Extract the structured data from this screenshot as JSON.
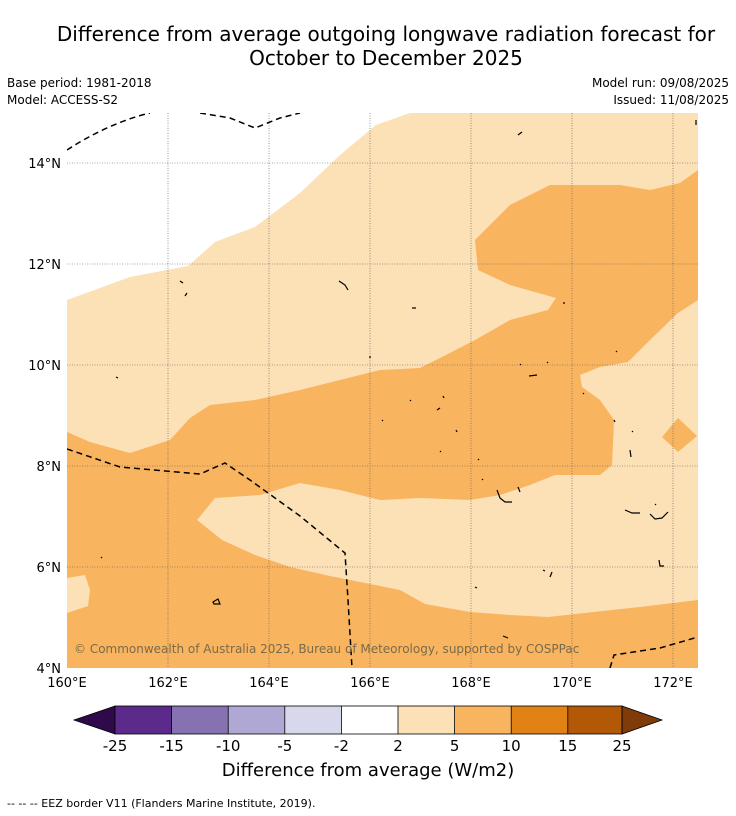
{
  "header": {
    "title_line1": "Difference from average outgoing longwave radiation forecast for",
    "title_line2": "October to December 2025",
    "base_period": "Base period: 1981-2018",
    "model": "Model: ACCESS-S2",
    "model_run": "Model run: 09/08/2025",
    "issued": "Issued: 11/08/2025"
  },
  "map": {
    "lon_labels": [
      "160°E",
      "162°E",
      "164°E",
      "166°E",
      "168°E",
      "170°E",
      "172°E"
    ],
    "lat_labels": [
      "14°N",
      "12°N",
      "10°N",
      "8°N",
      "6°N",
      "4°N"
    ],
    "copyright": "© Commonwealth of Australia 2025, Bureau of Meteorology, supported by COSPPac"
  },
  "colorbar": {
    "labels": [
      "-25",
      "-15",
      "-10",
      "-5",
      "-2",
      "2",
      "5",
      "10",
      "15",
      "25"
    ],
    "colors": [
      "#2e0a4a",
      "#5c2a8a",
      "#8672b0",
      "#b0a8d4",
      "#d8d8ec",
      "#ffffff",
      "#fce0b6",
      "#f9b45f",
      "#e08214",
      "#b35806",
      "#7f3b08"
    ],
    "title": "Difference from average (W/m2)"
  },
  "footnote": "--  --  -- EEZ border V11 (Flanders Marine Institute, 2019)."
}
